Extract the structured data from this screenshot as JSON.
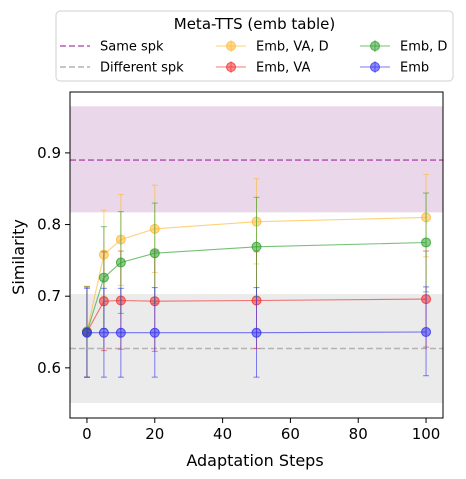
{
  "chart_data": {
    "type": "line",
    "title": "",
    "xlabel": "Adaptation Steps",
    "ylabel": "Similarity",
    "xlim": [
      -5,
      105
    ],
    "ylim": [
      0.53,
      0.985
    ],
    "xticks": [
      0,
      20,
      40,
      60,
      80,
      100
    ],
    "yticks": [
      0.6,
      0.7,
      0.8,
      0.9
    ],
    "ytick_labels": [
      "0.6",
      "0.7",
      "0.8",
      "0.9"
    ],
    "grid": false,
    "legend": {
      "title": "Meta-TTS (emb table)",
      "placement": "top",
      "columns": 3
    },
    "bands": [
      {
        "name": "Same spk",
        "y0": 0.817,
        "y1": 0.965,
        "color": "#ead7ea"
      },
      {
        "name": "Different spk",
        "y0": 0.551,
        "y1": 0.703,
        "color": "#ebebeb"
      }
    ],
    "reference_lines": [
      {
        "name": "Same spk",
        "y": 0.89,
        "color": "#b75fb7"
      },
      {
        "name": "Different spk",
        "y": 0.627,
        "color": "#b3b3b3"
      }
    ],
    "x": [
      0,
      5,
      10,
      20,
      50,
      100
    ],
    "series": [
      {
        "name": "Emb, VA, D",
        "color": "#ffb833",
        "values": [
          0.651,
          0.758,
          0.779,
          0.794,
          0.804,
          0.81
        ],
        "err_low": [
          0.587,
          0.7,
          0.715,
          0.733,
          0.745,
          0.755
        ],
        "err_high": [
          0.714,
          0.82,
          0.842,
          0.855,
          0.864,
          0.87
        ]
      },
      {
        "name": "Emb, VA",
        "color": "#f03030",
        "values": [
          0.65,
          0.693,
          0.694,
          0.693,
          0.694,
          0.696
        ],
        "err_low": [
          0.587,
          0.624,
          0.626,
          0.623,
          0.627,
          0.629
        ],
        "err_high": [
          0.713,
          0.762,
          0.763,
          0.763,
          0.762,
          0.763
        ]
      },
      {
        "name": "Emb, D",
        "color": "#2ca02c",
        "values": [
          0.65,
          0.726,
          0.747,
          0.76,
          0.769,
          0.775
        ],
        "err_low": [
          0.587,
          0.655,
          0.676,
          0.69,
          0.699,
          0.706
        ],
        "err_high": [
          0.713,
          0.797,
          0.818,
          0.83,
          0.838,
          0.844
        ]
      },
      {
        "name": "Emb",
        "color": "#2f2ff0",
        "values": [
          0.649,
          0.649,
          0.649,
          0.649,
          0.649,
          0.65
        ],
        "err_low": [
          0.587,
          0.587,
          0.587,
          0.587,
          0.587,
          0.589
        ],
        "err_high": [
          0.711,
          0.711,
          0.711,
          0.712,
          0.712,
          0.713
        ]
      }
    ]
  }
}
